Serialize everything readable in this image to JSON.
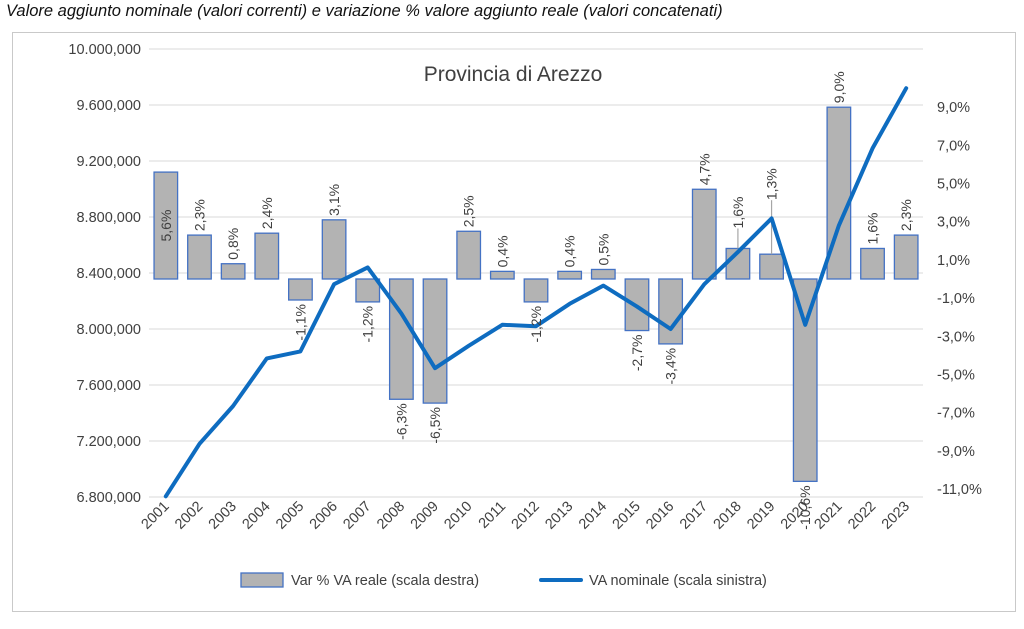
{
  "page_title": "Valore aggiunto nominale (valori correnti) e variazione % valore aggiunto reale (valori concatenati)",
  "chart_data": {
    "type": "bar",
    "title": "Provincia di Arezzo",
    "categories": [
      "2001",
      "2002",
      "2003",
      "2004",
      "2005",
      "2006",
      "2007",
      "2008",
      "2009",
      "2010",
      "2011",
      "2012",
      "2013",
      "2014",
      "2015",
      "2016",
      "2017",
      "2018",
      "2019",
      "2020",
      "2021",
      "2022",
      "2023"
    ],
    "series": [
      {
        "name": "Var % VA reale (scala destra)",
        "type": "bar",
        "axis": "right",
        "values": [
          5.6,
          2.3,
          0.8,
          2.4,
          -1.1,
          3.1,
          -1.2,
          -6.3,
          -6.5,
          2.5,
          0.4,
          -1.2,
          0.4,
          0.5,
          -2.7,
          -3.4,
          4.7,
          1.6,
          1.3,
          -10.6,
          9.0,
          1.6,
          2.3
        ],
        "labels": [
          "5,6%",
          "2,3%",
          "0,8%",
          "2,4%",
          "-1,1%",
          "3,1%",
          "-1,2%",
          "-6,3%",
          "-6,5%",
          "2,5%",
          "0,4%",
          "-1,2%",
          "0,4%",
          "0,5%",
          "-2,7%",
          "-3,4%",
          "4,7%",
          "1,6%",
          "1,3%",
          "-10,6%",
          "9,0%",
          "1,6%",
          "2,3%"
        ],
        "color": "#b3b3b3",
        "border_color": "#4472c4"
      },
      {
        "name": "VA nominale (scala sinistra)",
        "type": "line",
        "axis": "left",
        "values": [
          6805000,
          7180000,
          7450000,
          7790000,
          7840000,
          8320000,
          8440000,
          8110000,
          7720000,
          7880000,
          8030000,
          8020000,
          8180000,
          8310000,
          8160000,
          8000000,
          8320000,
          8550000,
          8790000,
          8030000,
          8740000,
          9290000,
          9720000
        ],
        "color": "#0e6cc0"
      }
    ],
    "y_left": {
      "min": 6800000,
      "max": 10000000,
      "ticks": [
        "10.000,000",
        "9.600,000",
        "9.200,000",
        "8.800,000",
        "8.400,000",
        "8.000,000",
        "7.600,000",
        "7.200,000",
        "6.800,000"
      ]
    },
    "y_right": {
      "min": -11,
      "max": 11,
      "ticks": [
        "9,0%",
        "7,0%",
        "5,0%",
        "3,0%",
        "1,0%",
        "-1,0%",
        "-3,0%",
        "-5,0%",
        "-7,0%",
        "-9,0%",
        "-11,0%"
      ]
    },
    "grid": true,
    "legend": "bottom"
  }
}
